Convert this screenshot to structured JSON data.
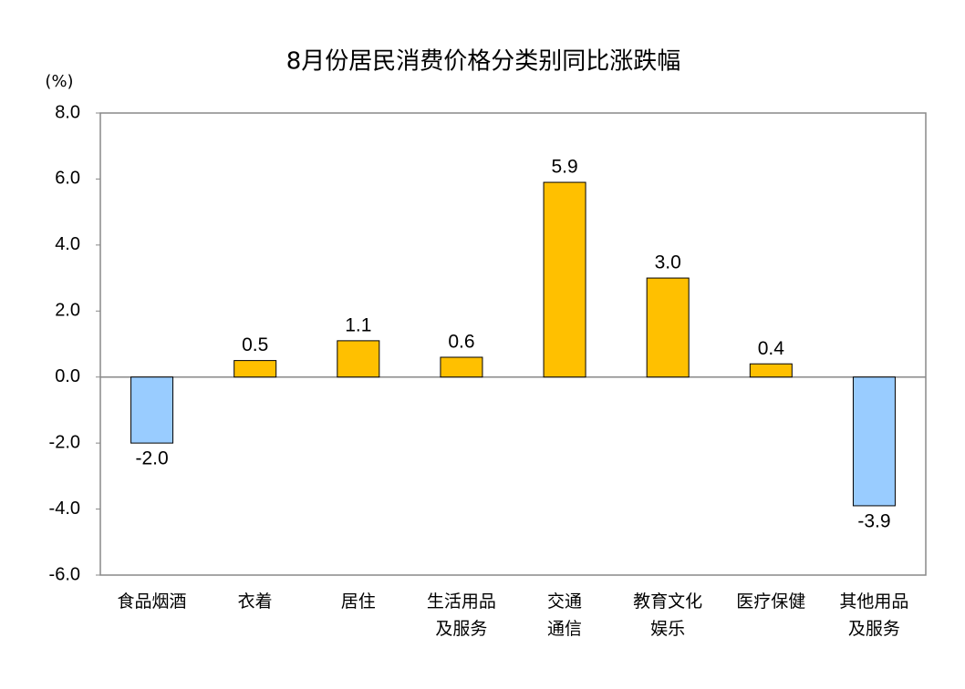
{
  "chart_data": {
    "type": "bar",
    "title": "8月份居民消费价格分类别同比涨跌幅",
    "y_unit": "(%)",
    "categories": [
      "食品烟酒",
      "衣着",
      "居住",
      "生活用品\n及服务",
      "交通\n通信",
      "教育文化\n娱乐",
      "医疗保健",
      "其他用品\n及服务"
    ],
    "values": [
      -2.0,
      0.5,
      1.1,
      0.6,
      5.9,
      3.0,
      0.4,
      -3.9
    ],
    "value_labels": [
      "-2.0",
      "0.5",
      "1.1",
      "0.6",
      "5.9",
      "3.0",
      "0.4",
      "-3.9"
    ],
    "positive_color": "#ffc000",
    "negative_color": "#99ccff",
    "ylim": [
      -6,
      8
    ],
    "yticks": [
      {
        "value": -6,
        "label": "-6.0"
      },
      {
        "value": -4,
        "label": "-4.0"
      },
      {
        "value": -2,
        "label": "-2.0"
      },
      {
        "value": 0,
        "label": "0.0"
      },
      {
        "value": 2,
        "label": "2.0"
      },
      {
        "value": 4,
        "label": "4.0"
      },
      {
        "value": 6,
        "label": "6.0"
      },
      {
        "value": 8,
        "label": "8.0"
      }
    ],
    "grid": false
  }
}
